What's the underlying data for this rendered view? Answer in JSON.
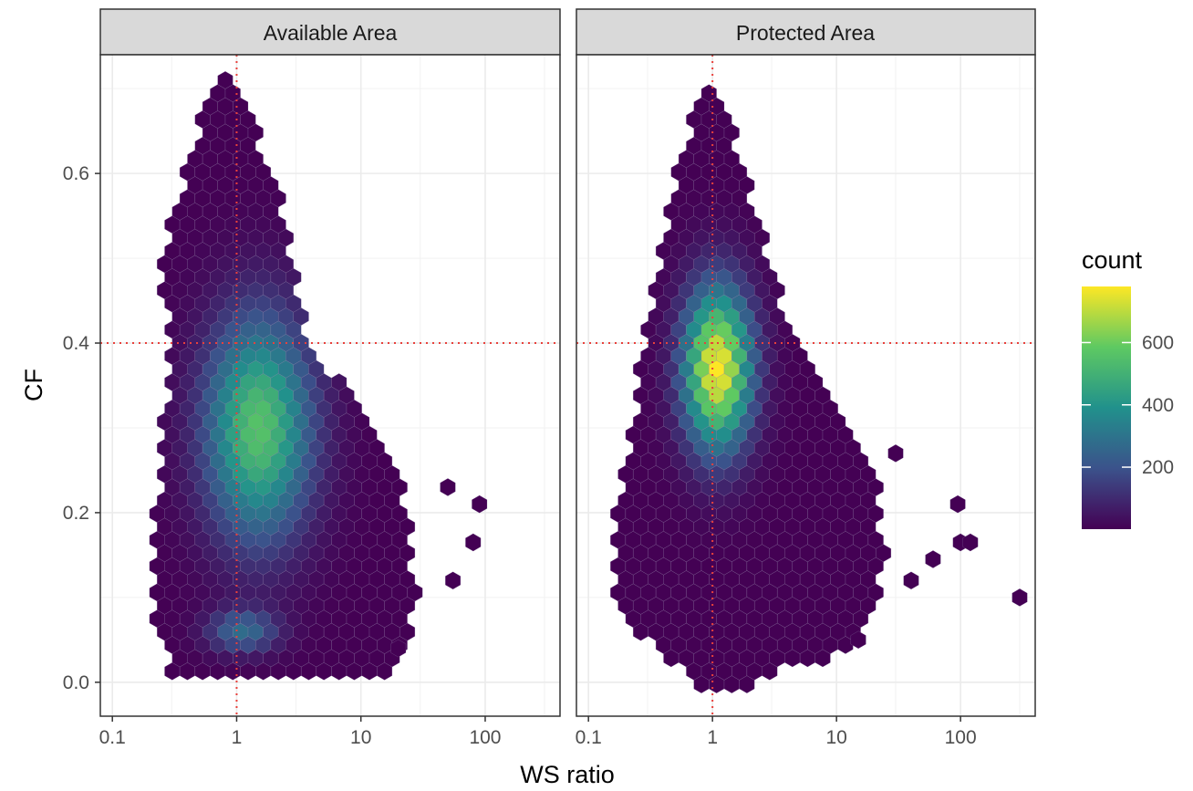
{
  "chart_data": {
    "type": "heatmap",
    "subtype": "hexbin",
    "xlabel": "WS ratio",
    "ylabel": "CF",
    "x_scale": "log10",
    "xlim": [
      0.08,
      400
    ],
    "ylim": [
      -0.04,
      0.74
    ],
    "x_ticks": [
      {
        "value": 0.1,
        "label": "0.1"
      },
      {
        "value": 1,
        "label": "1"
      },
      {
        "value": 10,
        "label": "10"
      },
      {
        "value": 100,
        "label": "100"
      }
    ],
    "y_ticks": [
      {
        "value": 0.0,
        "label": "0.0"
      },
      {
        "value": 0.2,
        "label": "0.2"
      },
      {
        "value": 0.4,
        "label": "0.4"
      },
      {
        "value": 0.6,
        "label": "0.6"
      }
    ],
    "grid": true,
    "reference_lines": {
      "x": 1,
      "y": 0.4,
      "color": "#e8413c",
      "style": "dotted"
    },
    "legend": {
      "title": "count",
      "position": "right",
      "range": [
        1,
        780
      ],
      "ticks": [
        200,
        400,
        600
      ],
      "colors": [
        "#440154",
        "#3b528b",
        "#21918c",
        "#5ec962",
        "#fde725"
      ]
    },
    "panels": [
      {
        "name": "Available Area",
        "x_range": [
          0.22,
          90
        ],
        "y_range": [
          0.02,
          0.72
        ],
        "peak": {
          "x": 1.5,
          "y": 0.3,
          "count": 560
        },
        "notes": "broad density, secondary band near CF 0.06 around WS ratio 1"
      },
      {
        "name": "Protected Area",
        "x_range": [
          0.15,
          300
        ],
        "y_range": [
          0.0,
          0.7
        ],
        "peak": {
          "x": 1.1,
          "y": 0.37,
          "count": 780
        },
        "notes": "sharp peak just above WS ratio 1"
      }
    ]
  }
}
